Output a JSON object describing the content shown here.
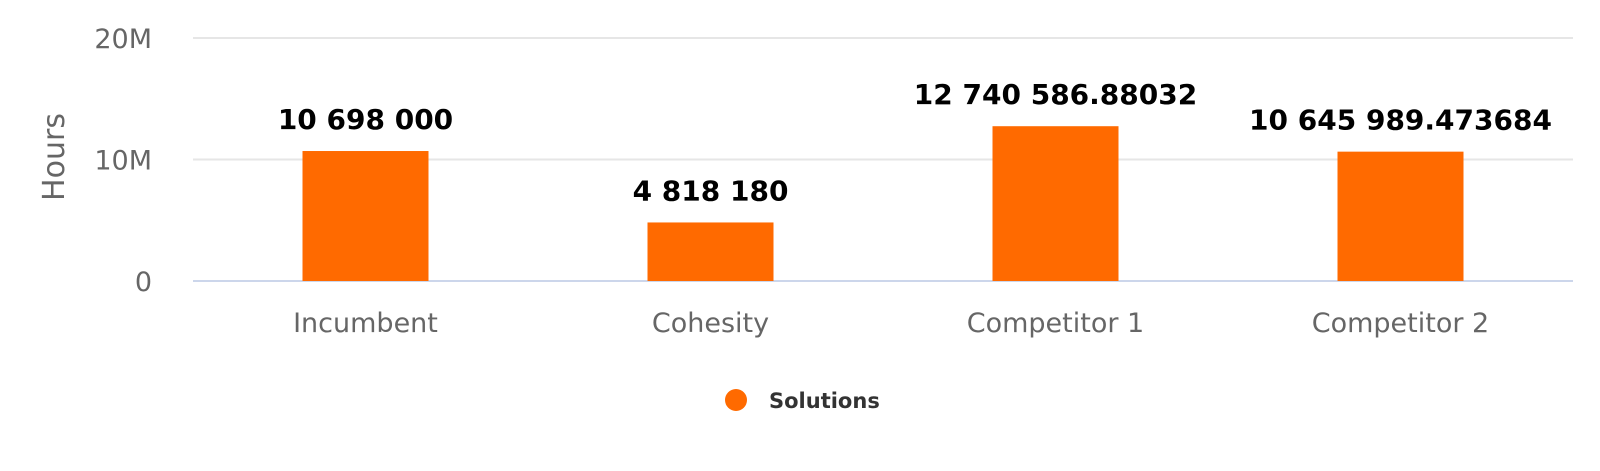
{
  "chart_data": {
    "type": "bar",
    "categories": [
      "Incumbent",
      "Cohesity",
      "Competitor 1",
      "Competitor 2"
    ],
    "series": [
      {
        "name": "Solutions",
        "values": [
          10698000,
          4818180,
          12740586.88032,
          10645989.473684
        ],
        "data_labels": [
          "10 698 000",
          "4 818 180",
          "12 740 586.88032",
          "10 645 989.473684"
        ],
        "color": "#ff6a00"
      }
    ],
    "ylabel": "Hours",
    "xlabel": "",
    "ylim": [
      0,
      20000000
    ],
    "y_ticks": [
      {
        "value": 0,
        "label": "0"
      },
      {
        "value": 10000000,
        "label": "10M"
      },
      {
        "value": 20000000,
        "label": "20M"
      }
    ],
    "grid": true,
    "legend_position": "bottom-center"
  }
}
